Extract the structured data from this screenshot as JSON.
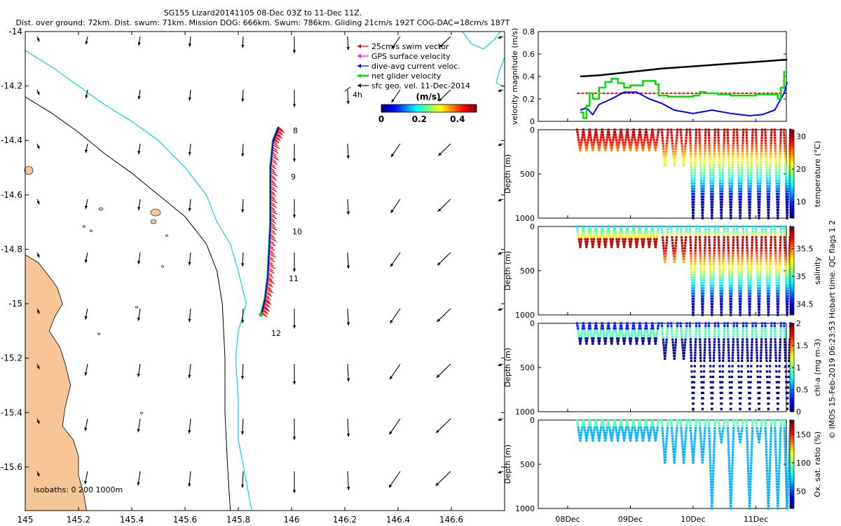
{
  "title": {
    "line1": "SG155 Lizard20141105 08-Dec 03Z to 11-Dec 11Z.",
    "line2": "Dist. over ground: 72km. Dist. swum: 71km. Mission DOG: 666km. Swum: 786km. Gliding 21cm/s 192T COG-DAC=18cm/s 187T"
  },
  "map": {
    "xticks": [
      "145",
      "145.2",
      "145.4",
      "145.6",
      "145.8",
      "146",
      "146.2",
      "146.4",
      "146.6"
    ],
    "yticks": [
      "-14",
      "-14.2",
      "-14.4",
      "-14.6",
      "-14.8",
      "-15",
      "-15.2",
      "-15.4",
      "-15.6"
    ],
    "xlim": [
      145,
      146.8
    ],
    "ylim": [
      -15.76,
      -14
    ],
    "day_labels": [
      "8",
      "9",
      "10",
      "11",
      "12"
    ],
    "isobaths_label": "isobaths: 0   200  1000m",
    "legend": [
      {
        "label": "25cm/s swim vector",
        "color": "#ff0000"
      },
      {
        "label": "GPS surface velocity",
        "color": "#ff00ff"
      },
      {
        "label": "dive-avg current veloc.",
        "color": "#0000ff"
      },
      {
        "label": "net glider velocity",
        "color": "#00dd00"
      },
      {
        "label": "sfc geo. vel. 11-Dec-2014",
        "color": "#000000"
      }
    ],
    "legend_4h": "4h",
    "colorbar": {
      "title": "(m/s)",
      "ticks": [
        "0",
        "0.2",
        "0.4"
      ],
      "range": [
        0,
        0.5
      ]
    },
    "track": [
      [
        145.95,
        -14.35
      ],
      [
        145.93,
        -14.4
      ],
      [
        145.92,
        -14.5
      ],
      [
        145.92,
        -14.6
      ],
      [
        145.92,
        -14.7
      ],
      [
        145.915,
        -14.8
      ],
      [
        145.91,
        -14.9
      ],
      [
        145.9,
        -14.98
      ],
      [
        145.885,
        -15.04
      ]
    ]
  },
  "velocity_panel": {
    "ylabel": "velocity magnitude (m/s)",
    "yticks": [
      "0",
      "0.2",
      "0.4",
      "0.6",
      "0.8"
    ],
    "ylim": [
      0,
      0.8
    ],
    "series": [
      {
        "color": "#000000",
        "t": [
          0.2,
          0.5,
          1,
          1.5,
          2,
          2.5,
          3,
          3.5
        ],
        "v": [
          0.4,
          0.41,
          0.44,
          0.47,
          0.49,
          0.51,
          0.53,
          0.55
        ]
      },
      {
        "color": "#ff0000",
        "t": [
          0.15,
          3.5
        ],
        "v": [
          0.25,
          0.25
        ]
      },
      {
        "color": "#0000ff",
        "t": [
          0.2,
          0.3,
          0.4,
          0.5,
          0.7,
          0.9,
          1.1,
          1.3,
          1.5,
          1.7,
          2,
          2.3,
          2.6,
          2.9,
          3.1,
          3.3,
          3.45,
          3.5
        ],
        "v": [
          0.1,
          0.12,
          0.06,
          0.15,
          0.2,
          0.26,
          0.26,
          0.2,
          0.16,
          0.1,
          0.07,
          0.1,
          0.07,
          0.05,
          0.06,
          0.1,
          0.25,
          0.35
        ]
      },
      {
        "color": "#00dd00",
        "t": [
          0.2,
          0.25,
          0.3,
          0.35,
          0.4,
          0.5,
          0.6,
          0.7,
          0.8,
          0.9,
          1.0,
          1.2,
          1.4,
          1.45,
          1.6,
          1.8,
          2.0,
          2.1,
          2.2,
          2.4,
          2.6,
          2.8,
          3.0,
          3.2,
          3.35,
          3.4,
          3.45,
          3.5
        ],
        "v": [
          0.08,
          0.03,
          0.14,
          0.25,
          0.2,
          0.3,
          0.35,
          0.38,
          0.34,
          0.3,
          0.32,
          0.36,
          0.33,
          0.23,
          0.22,
          0.22,
          0.23,
          0.26,
          0.25,
          0.24,
          0.23,
          0.23,
          0.24,
          0.24,
          0.2,
          0.3,
          0.44,
          0.44
        ]
      }
    ]
  },
  "depth_panels": [
    {
      "ylabel": "Depth (m)",
      "cbar_label": "temperature (°C)",
      "cbar_ticks": [
        "10",
        "20",
        "30"
      ],
      "cbar_range": [
        5,
        32
      ],
      "colormap": "jet"
    },
    {
      "ylabel": "Depth (m)",
      "cbar_label": "salinity",
      "cbar_ticks": [
        "34.5",
        "35",
        "35.5"
      ],
      "cbar_range": [
        34.3,
        35.9
      ],
      "colormap": "jet"
    },
    {
      "ylabel": "Depth (m)",
      "cbar_label": "chl-a (mg m-3)",
      "cbar_ticks": [
        "0",
        "0.5",
        "1",
        "1.5",
        "2"
      ],
      "cbar_range": [
        0,
        2
      ],
      "colormap": "jet"
    },
    {
      "ylabel": "Depth (m)",
      "cbar_label": "Ox. sat. ratio (%)",
      "cbar_ticks": [
        "50",
        "100",
        "150"
      ],
      "cbar_range": [
        20,
        175
      ],
      "colormap": "jet"
    }
  ],
  "depth_yticks": [
    "0",
    "500",
    "1000"
  ],
  "time_ticks": [
    "08Dec",
    "09Dec",
    "10Dec",
    "11Dec"
  ],
  "footer": "© IMOS 15-Feb-2019 06:23:53 Hobart time. QC flags 1  2"
}
